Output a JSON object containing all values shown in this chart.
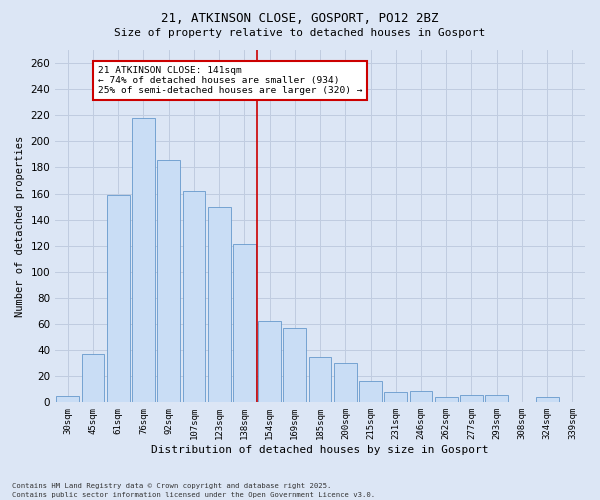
{
  "title1": "21, ATKINSON CLOSE, GOSPORT, PO12 2BZ",
  "title2": "Size of property relative to detached houses in Gosport",
  "xlabel": "Distribution of detached houses by size in Gosport",
  "ylabel": "Number of detached properties",
  "bar_labels": [
    "30sqm",
    "45sqm",
    "61sqm",
    "76sqm",
    "92sqm",
    "107sqm",
    "123sqm",
    "138sqm",
    "154sqm",
    "169sqm",
    "185sqm",
    "200sqm",
    "215sqm",
    "231sqm",
    "246sqm",
    "262sqm",
    "277sqm",
    "293sqm",
    "308sqm",
    "324sqm",
    "339sqm"
  ],
  "bar_values": [
    5,
    37,
    159,
    218,
    186,
    162,
    150,
    121,
    62,
    57,
    35,
    30,
    16,
    8,
    9,
    4,
    6,
    6,
    0,
    4,
    0
  ],
  "bar_color": "#c9ddf5",
  "bar_edgecolor": "#6699cc",
  "grid_color": "#c0cce0",
  "bg_color": "#dce6f5",
  "vline_color": "#cc0000",
  "annotation_title": "21 ATKINSON CLOSE: 141sqm",
  "annotation_line1": "← 74% of detached houses are smaller (934)",
  "annotation_line2": "25% of semi-detached houses are larger (320) →",
  "annotation_box_color": "#cc0000",
  "annotation_bg": "#ffffff",
  "ylim": [
    0,
    270
  ],
  "yticks": [
    0,
    20,
    40,
    60,
    80,
    100,
    120,
    140,
    160,
    180,
    200,
    220,
    240,
    260
  ],
  "footnote1": "Contains HM Land Registry data © Crown copyright and database right 2025.",
  "footnote2": "Contains public sector information licensed under the Open Government Licence v3.0."
}
